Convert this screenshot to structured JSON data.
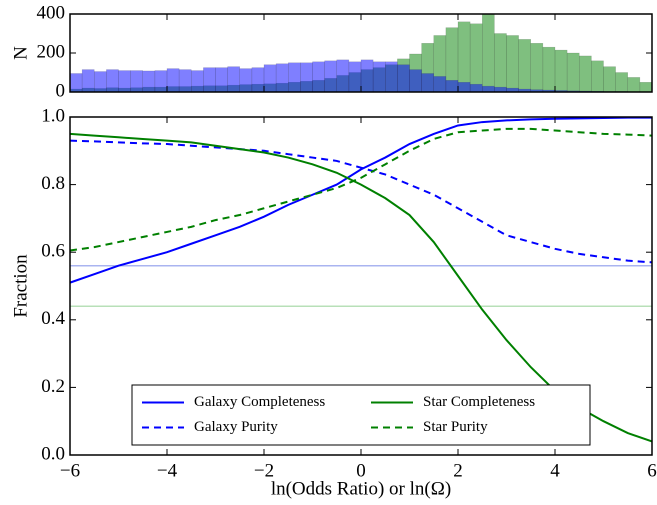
{
  "chart_data": [
    {
      "type": "histogram",
      "ylabel": "N",
      "bins": [
        -6,
        -5.75,
        -5.5,
        -5.25,
        -5,
        -4.75,
        -4.5,
        -4.25,
        -4,
        -3.75,
        -3.5,
        -3.25,
        -3,
        -2.75,
        -2.5,
        -2.25,
        -2,
        -1.75,
        -1.5,
        -1.25,
        -1,
        -0.75,
        -0.5,
        -0.25,
        0,
        0.25,
        0.5,
        0.75,
        1,
        1.25,
        1.5,
        1.75,
        2,
        2.25,
        2.5,
        2.75,
        3,
        3.25,
        3.5,
        3.75,
        4,
        4.25,
        4.5,
        4.75,
        5,
        5.25,
        5.5,
        5.75,
        6
      ],
      "series": [
        {
          "color": "#008000",
          "values": [
            15,
            20,
            18,
            22,
            20,
            22,
            25,
            25,
            28,
            28,
            30,
            32,
            32,
            35,
            38,
            40,
            42,
            45,
            50,
            55,
            60,
            70,
            85,
            100,
            115,
            125,
            140,
            170,
            195,
            250,
            290,
            330,
            360,
            350,
            400,
            300,
            290,
            270,
            250,
            230,
            215,
            200,
            185,
            160,
            130,
            100,
            75,
            50
          ]
        },
        {
          "color": "#0000ff",
          "values": [
            95,
            115,
            105,
            115,
            110,
            110,
            108,
            110,
            120,
            115,
            110,
            125,
            125,
            130,
            120,
            125,
            140,
            145,
            150,
            150,
            155,
            160,
            165,
            155,
            165,
            155,
            155,
            140,
            115,
            95,
            80,
            60,
            50,
            40,
            30,
            25,
            20,
            15,
            12,
            10,
            8,
            6,
            5,
            4,
            3,
            3,
            2,
            2
          ]
        }
      ],
      "xlim": [
        -6,
        6
      ],
      "xticks": [
        -6,
        -4,
        -2,
        0,
        2,
        4,
        6
      ],
      "ylim": [
        0,
        400
      ],
      "yticks": [
        0,
        200,
        400
      ]
    },
    {
      "type": "line",
      "xlabel": "ln(Odds Ratio) or ln(Ω)",
      "ylabel": "Fraction",
      "x": [
        -6,
        -5.5,
        -5,
        -4.5,
        -4,
        -3.5,
        -3,
        -2.5,
        -2,
        -1.5,
        -1,
        -0.5,
        0,
        0.5,
        1,
        1.5,
        2,
        2.5,
        3,
        3.5,
        4,
        4.5,
        5,
        5.5,
        6
      ],
      "series": [
        {
          "name": "Galaxy Completeness",
          "color": "#0000ff",
          "dashed": false,
          "values": [
            0.51,
            0.535,
            0.56,
            0.58,
            0.6,
            0.625,
            0.65,
            0.675,
            0.705,
            0.74,
            0.77,
            0.8,
            0.845,
            0.88,
            0.92,
            0.95,
            0.975,
            0.985,
            0.99,
            0.993,
            0.995,
            0.996,
            0.997,
            0.998,
            0.998
          ]
        },
        {
          "name": "Galaxy Purity",
          "color": "#0000ff",
          "dashed": true,
          "values": [
            0.93,
            0.928,
            0.925,
            0.922,
            0.92,
            0.915,
            0.91,
            0.905,
            0.9,
            0.89,
            0.88,
            0.87,
            0.85,
            0.83,
            0.8,
            0.77,
            0.73,
            0.69,
            0.65,
            0.63,
            0.61,
            0.595,
            0.585,
            0.575,
            0.57
          ]
        },
        {
          "name": "Star Completeness",
          "color": "#008000",
          "dashed": false,
          "values": [
            0.95,
            0.945,
            0.94,
            0.935,
            0.93,
            0.925,
            0.915,
            0.905,
            0.895,
            0.88,
            0.86,
            0.835,
            0.8,
            0.76,
            0.71,
            0.63,
            0.53,
            0.43,
            0.34,
            0.26,
            0.19,
            0.14,
            0.1,
            0.065,
            0.04
          ]
        },
        {
          "name": "Star Purity",
          "color": "#008000",
          "dashed": true,
          "values": [
            0.605,
            0.615,
            0.63,
            0.645,
            0.66,
            0.675,
            0.695,
            0.71,
            0.73,
            0.75,
            0.77,
            0.79,
            0.82,
            0.86,
            0.9,
            0.935,
            0.955,
            0.96,
            0.965,
            0.965,
            0.96,
            0.955,
            0.95,
            0.948,
            0.945
          ]
        }
      ],
      "hlines": [
        {
          "value": 0.56,
          "color": "#aab4f0"
        },
        {
          "value": 0.44,
          "color": "#b8e0b8"
        }
      ],
      "xlim": [
        -6,
        6
      ],
      "xticks": [
        {
          "value": -6,
          "label": "−6"
        },
        {
          "value": -4,
          "label": "−4"
        },
        {
          "value": -2,
          "label": "−2"
        },
        0,
        2,
        4,
        6
      ],
      "ylim": [
        0,
        1
      ],
      "yticks": [
        {
          "value": 0,
          "label": "0.0"
        },
        0.2,
        0.4,
        0.6,
        0.8,
        {
          "value": 1,
          "label": "1.0"
        }
      ],
      "legend": "lower center",
      "legend_columns": 2
    }
  ]
}
